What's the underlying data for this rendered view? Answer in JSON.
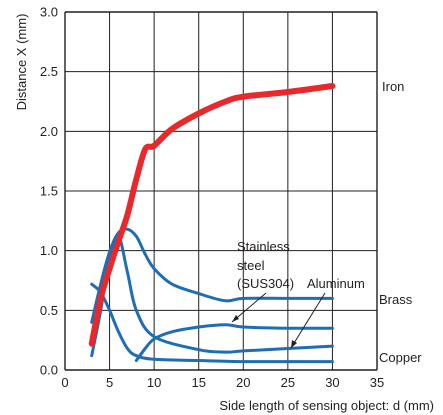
{
  "chart_data": {
    "type": "line",
    "xlabel": "Side length of sensing object: d (mm)",
    "ylabel": "Distance X (mm)",
    "xlim": [
      0,
      35
    ],
    "ylim": [
      0,
      3.0
    ],
    "grid": true,
    "x_ticks": [
      "0",
      "5",
      "10",
      "15",
      "20",
      "25",
      "30",
      "35"
    ],
    "y_ticks": [
      "0.0",
      "0.5",
      "1.0",
      "1.5",
      "2.0",
      "2.5",
      "3.0"
    ],
    "series": [
      {
        "name": "Iron",
        "color": "#e8282b",
        "x": [
          3,
          4,
          5,
          6,
          7,
          8,
          9,
          10,
          12,
          15,
          18,
          20,
          25,
          30
        ],
        "y": [
          0.22,
          0.6,
          0.85,
          1.08,
          1.3,
          1.6,
          1.85,
          1.88,
          2.02,
          2.15,
          2.25,
          2.29,
          2.33,
          2.38
        ]
      },
      {
        "name": "Brass",
        "color": "#1f6db5",
        "x": [
          3,
          4,
          5,
          6,
          7,
          8,
          9,
          10,
          12,
          15,
          18,
          20,
          25,
          30
        ],
        "y": [
          0.4,
          0.72,
          0.99,
          1.15,
          1.18,
          1.12,
          0.97,
          0.85,
          0.72,
          0.64,
          0.58,
          0.6,
          0.6,
          0.6
        ]
      },
      {
        "name": "Stainless steel (SUS304)",
        "color": "#1f6db5",
        "x": [
          8,
          9,
          10,
          12,
          15,
          18,
          20,
          25,
          30
        ],
        "y": [
          0.08,
          0.18,
          0.26,
          0.32,
          0.36,
          0.38,
          0.36,
          0.35,
          0.35
        ]
      },
      {
        "name": "Aluminum",
        "color": "#1f6db5",
        "x": [
          3,
          4,
          5,
          6,
          7,
          8,
          10,
          15,
          18,
          20,
          25,
          30
        ],
        "y": [
          0.12,
          0.5,
          0.95,
          1.12,
          0.82,
          0.5,
          0.28,
          0.17,
          0.15,
          0.16,
          0.18,
          0.2
        ]
      },
      {
        "name": "Copper",
        "color": "#1f6db5",
        "x": [
          3,
          4,
          5,
          6,
          7,
          8,
          10,
          15,
          20,
          25,
          30
        ],
        "y": [
          0.72,
          0.65,
          0.5,
          0.32,
          0.18,
          0.12,
          0.09,
          0.08,
          0.07,
          0.07,
          0.07
        ]
      }
    ],
    "annotations": {
      "iron": "Iron",
      "brass": "Brass",
      "copper": "Copper",
      "aluminum": "Aluminum",
      "stainless_line1": "Stainless",
      "stainless_line2": "steel",
      "stainless_line3": "(SUS304)"
    }
  }
}
